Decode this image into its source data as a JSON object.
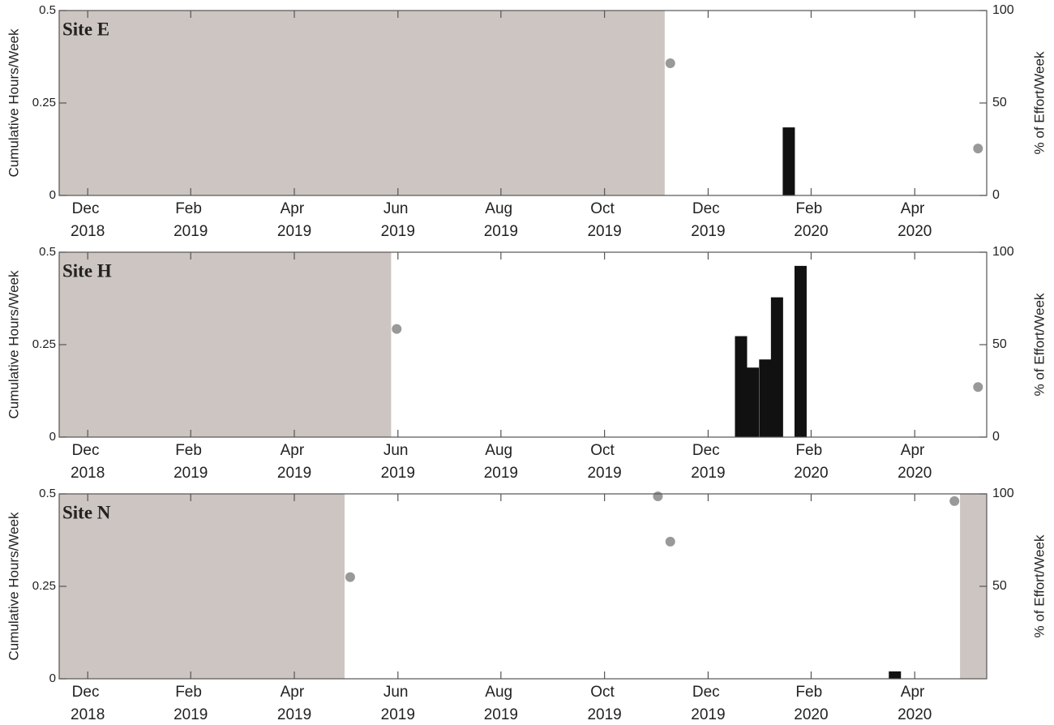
{
  "chart_data": [
    {
      "type": "bar",
      "title": "Site E",
      "ylabel": "Cumulative Hours/Week",
      "y2label": "% of Effort/Week",
      "xlim": [
        2018.871,
        2020.366
      ],
      "xticks": [
        {
          "value": 2018.917,
          "label": "Dec 2018"
        },
        {
          "value": 2019.083,
          "label": "Feb 2019"
        },
        {
          "value": 2019.25,
          "label": "Apr 2019"
        },
        {
          "value": 2019.417,
          "label": "Jun 2019"
        },
        {
          "value": 2019.583,
          "label": "Aug 2019"
        },
        {
          "value": 2019.75,
          "label": "Oct 2019"
        },
        {
          "value": 2019.917,
          "label": "Dec 2019"
        },
        {
          "value": 2020.083,
          "label": "Feb 2020"
        },
        {
          "value": 2020.25,
          "label": "Apr 2020"
        }
      ],
      "ylim": [
        0,
        0.5
      ],
      "yticks": [
        0,
        0.25,
        0.5
      ],
      "y2lim": [
        0,
        100
      ],
      "y2ticks": [
        0,
        50,
        100
      ],
      "shaded": [
        [
          2018.871,
          2019.847
        ]
      ],
      "shade_color": "#cdc5c1",
      "series": [
        {
          "type": "bar",
          "color": "#111111",
          "x": [
            2020.047
          ],
          "values": [
            0.184
          ]
        },
        {
          "type": "scatter",
          "axis": "y2",
          "color": "#999999",
          "x": [
            2019.856,
            2020.352
          ],
          "values": [
            71.5,
            25.4
          ]
        }
      ]
    },
    {
      "type": "bar",
      "title": "Site H",
      "ylabel": "Cumulative Hours/Week",
      "y2label": "% of Effort/Week",
      "xlim": [
        2018.871,
        2020.366
      ],
      "xticks": [
        {
          "value": 2018.917,
          "label": "Dec 2018"
        },
        {
          "value": 2019.083,
          "label": "Feb 2019"
        },
        {
          "value": 2019.25,
          "label": "Apr 2019"
        },
        {
          "value": 2019.417,
          "label": "Jun 2019"
        },
        {
          "value": 2019.583,
          "label": "Aug 2019"
        },
        {
          "value": 2019.75,
          "label": "Oct 2019"
        },
        {
          "value": 2019.917,
          "label": "Dec 2019"
        },
        {
          "value": 2020.083,
          "label": "Feb 2020"
        },
        {
          "value": 2020.25,
          "label": "Apr 2020"
        }
      ],
      "ylim": [
        0,
        0.5
      ],
      "yticks": [
        0,
        0.25,
        0.5
      ],
      "y2lim": [
        0,
        100
      ],
      "y2ticks": [
        0,
        50,
        100
      ],
      "shaded": [
        [
          2018.871,
          2019.406
        ]
      ],
      "shade_color": "#cdc5c1",
      "series": [
        {
          "type": "bar",
          "color": "#111111",
          "x": [
            2019.97,
            2019.989,
            2020.009,
            2020.028,
            2020.066
          ],
          "values": [
            0.273,
            0.188,
            0.21,
            0.378,
            0.463
          ]
        },
        {
          "type": "scatter",
          "axis": "y2",
          "color": "#999999",
          "x": [
            2019.415,
            2020.352
          ],
          "values": [
            58.5,
            27.1
          ]
        }
      ]
    },
    {
      "type": "bar",
      "title": "Site N",
      "ylabel": "Cumulative Hours/Week",
      "y2label": "% of Effort/Week",
      "xlim": [
        2018.871,
        2020.366
      ],
      "xticks": [
        {
          "value": 2018.917,
          "label": "Dec 2018"
        },
        {
          "value": 2019.083,
          "label": "Feb 2019"
        },
        {
          "value": 2019.25,
          "label": "Apr 2019"
        },
        {
          "value": 2019.417,
          "label": "Jun 2019"
        },
        {
          "value": 2019.583,
          "label": "Aug 2019"
        },
        {
          "value": 2019.75,
          "label": "Oct 2019"
        },
        {
          "value": 2019.917,
          "label": "Dec 2019"
        },
        {
          "value": 2020.083,
          "label": "Feb 2020"
        },
        {
          "value": 2020.25,
          "label": "Apr 2020"
        }
      ],
      "ylim": [
        0,
        0.5
      ],
      "yticks": [
        0,
        0.25,
        0.5
      ],
      "y2lim": [
        0,
        100
      ],
      "y2ticks": [
        50,
        100
      ],
      "shaded": [
        [
          2018.871,
          2019.331
        ],
        [
          2020.323,
          2020.366
        ]
      ],
      "shade_color": "#cdc5c1",
      "series": [
        {
          "type": "bar",
          "color": "#111111",
          "x": [
            2020.218
          ],
          "values": [
            0.02
          ]
        },
        {
          "type": "scatter",
          "axis": "y2",
          "color": "#999999",
          "x": [
            2019.34,
            2019.836,
            2019.856,
            2020.314
          ],
          "values": [
            55.0,
            98.7,
            74.2,
            96.1
          ]
        }
      ]
    }
  ]
}
